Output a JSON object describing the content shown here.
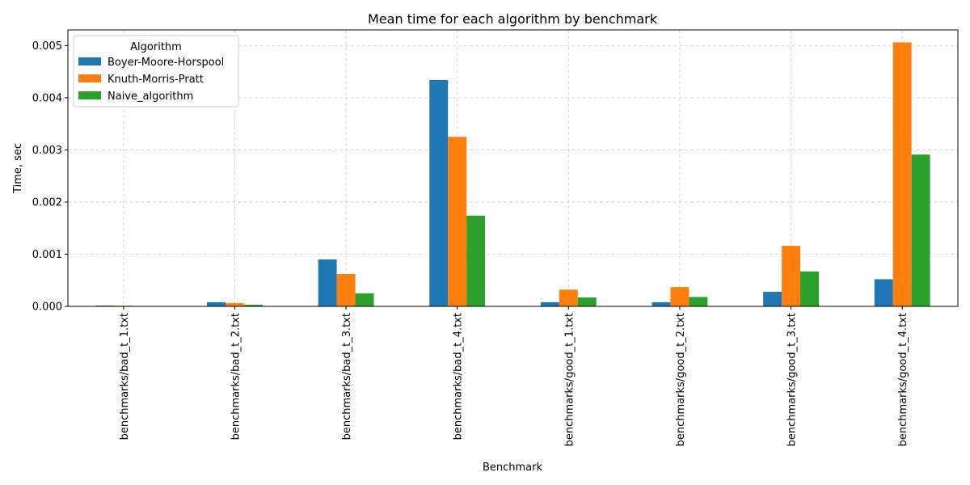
{
  "chart_data": {
    "type": "bar",
    "title": "Mean time for each algorithm by benchmark",
    "xlabel": "Benchmark",
    "ylabel": "Time, sec",
    "ylim": [
      0,
      0.0053
    ],
    "yticks": [
      "0.000",
      "0.001",
      "0.002",
      "0.003",
      "0.004",
      "0.005"
    ],
    "grid": true,
    "legend_title": "Algorithm",
    "legend_position": "top-left",
    "categories": [
      "benchmarks/bad_t_1.txt",
      "benchmarks/bad_t_2.txt",
      "benchmarks/bad_t_3.txt",
      "benchmarks/bad_t_4.txt",
      "benchmarks/good_t_1.txt",
      "benchmarks/good_t_2.txt",
      "benchmarks/good_t_3.txt",
      "benchmarks/good_t_4.txt"
    ],
    "series": [
      {
        "name": "Boyer-Moore-Horspool",
        "color": "#1f77b4",
        "values": [
          1.5e-05,
          8e-05,
          0.0009,
          0.00434,
          8e-05,
          8e-05,
          0.00028,
          0.00052
        ]
      },
      {
        "name": "Knuth-Morris-Pratt",
        "color": "#ff7f0e",
        "values": [
          1.2e-05,
          6e-05,
          0.00062,
          0.00325,
          0.00032,
          0.00037,
          0.00116,
          0.00506
        ]
      },
      {
        "name": "Naive_algorithm",
        "color": "#2ca02c",
        "values": [
          5e-06,
          3e-05,
          0.00025,
          0.00174,
          0.00017,
          0.00018,
          0.00067,
          0.00291
        ]
      }
    ]
  }
}
